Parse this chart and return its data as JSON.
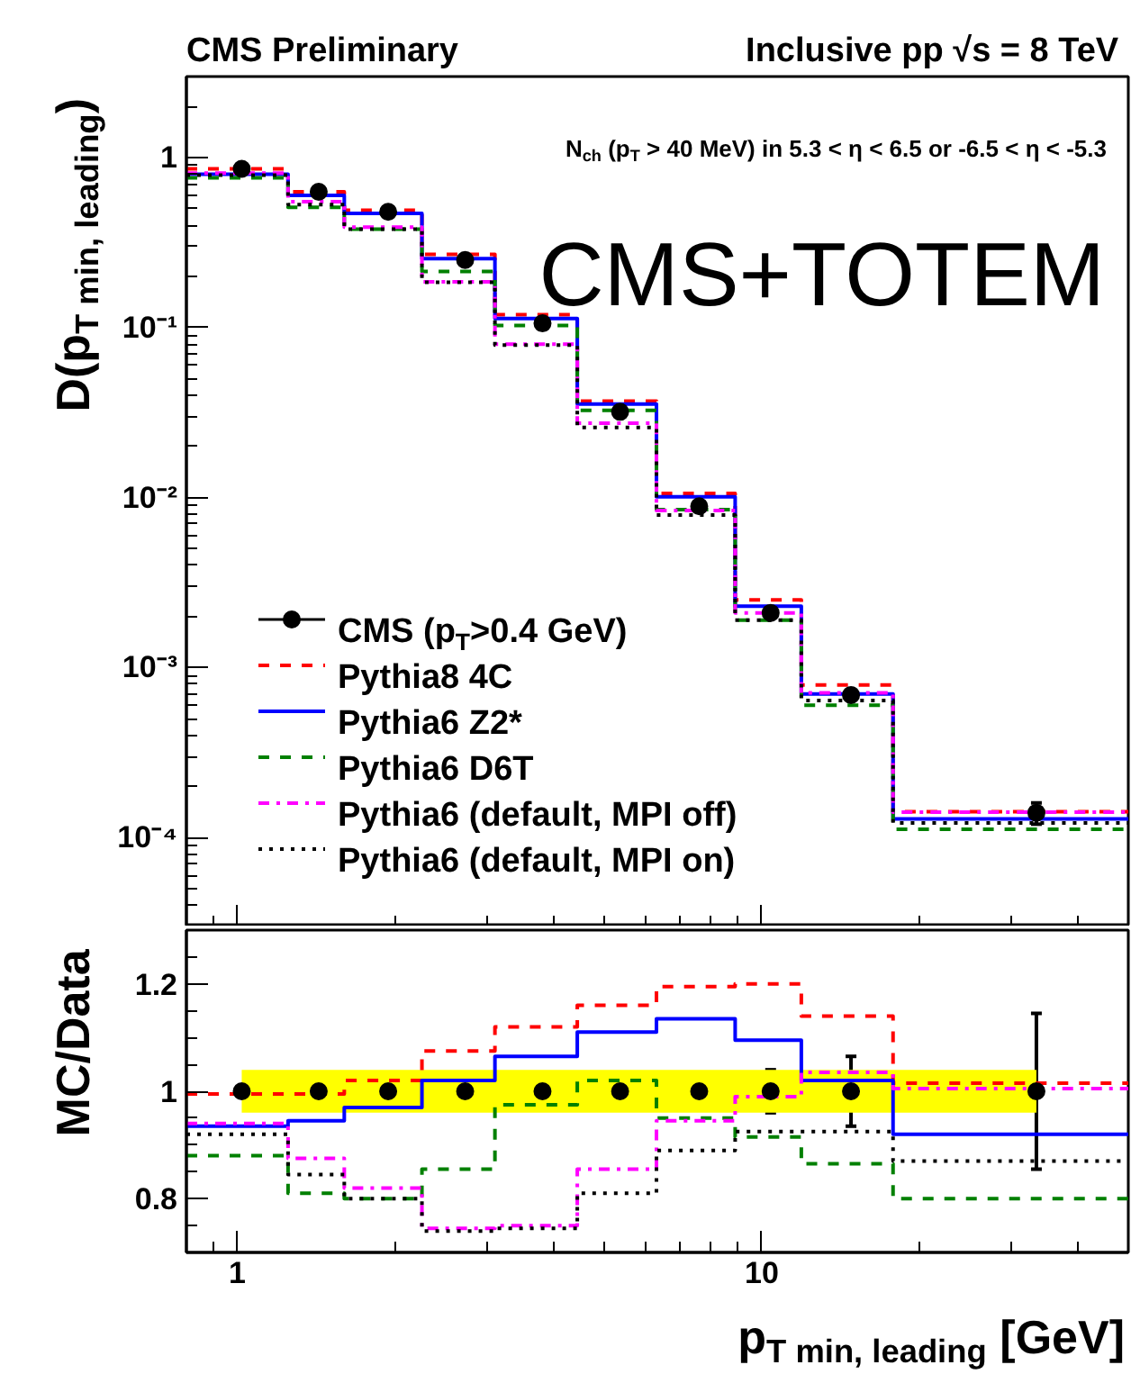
{
  "chart_data": [
    {
      "type": "histogram",
      "title": "CMS Preliminary",
      "subtitle": "Inclusive pp √s = 8 TeV",
      "ylabel": "D(p$_{T min, leading}$)",
      "annotations": [
        "N$_{ch}$ (p$_{T}$ > 40 MeV) in 5.3 < η < 6.5 or -6.5 < η < -5.3",
        "CMS+TOTEM"
      ],
      "bins": [
        0.8,
        1.25,
        1.6,
        2.25,
        3.1,
        4.45,
        6.3,
        8.9,
        11.9,
        17.8,
        50
      ],
      "series": [
        {
          "name": "CMS (p$_{T}$>0.4 GeV)",
          "type": "scatter",
          "color": "#000000",
          "x": [
            1.02,
            1.43,
            1.94,
            2.72,
            3.82,
            5.37,
            7.6,
            10.4,
            14.8,
            33.4
          ],
          "values": [
            0.86,
            0.63,
            0.48,
            0.25,
            0.106,
            0.032,
            0.0089,
            0.0021,
            0.00069,
            0.00014
          ],
          "errors": [
            null,
            null,
            null,
            null,
            null,
            null,
            null,
            null,
            null,
            2e-05
          ]
        },
        {
          "name": "Pythia8 4C",
          "color": "#ff0000",
          "line_style": "dashed",
          "values": [
            0.86,
            0.63,
            0.49,
            0.27,
            0.119,
            0.037,
            0.0106,
            0.0025,
            0.00079,
            0.000142
          ]
        },
        {
          "name": "Pythia6 Z2*",
          "color": "#0000ff",
          "line_style": "solid",
          "values": [
            0.8,
            0.6,
            0.47,
            0.255,
            0.113,
            0.0355,
            0.0101,
            0.0023,
            0.0007,
            0.000129
          ]
        },
        {
          "name": "Pythia6 D6T",
          "color": "#008000",
          "line_style": "dashed",
          "values": [
            0.76,
            0.51,
            0.38,
            0.214,
            0.103,
            0.0326,
            0.0085,
            0.0019,
            0.0006,
            0.000112
          ]
        },
        {
          "name": "Pythia6 (default, MPI off)",
          "color": "#ff00ff",
          "line_style": "dashdot",
          "values": [
            0.81,
            0.55,
            0.39,
            0.186,
            0.08,
            0.0274,
            0.0084,
            0.0021,
            0.00071,
            0.000141
          ]
        },
        {
          "name": "Pythia6 (default, MPI on)",
          "color": "#000000",
          "line_style": "dotted",
          "values": [
            0.79,
            0.53,
            0.38,
            0.185,
            0.079,
            0.0259,
            0.0079,
            0.0019,
            0.00064,
            0.000122
          ]
        }
      ],
      "log": "xy",
      "xlim": [
        0.8,
        50
      ],
      "xticks": [
        1,
        10
      ],
      "ylim": [
        3e-05,
        3
      ],
      "yticks": [
        {
          "value": 1,
          "label": "1"
        },
        {
          "value": 0.1,
          "label": "10⁻¹"
        },
        {
          "value": 0.01,
          "label": "10⁻²"
        },
        {
          "value": 0.001,
          "label": "10⁻³"
        },
        {
          "value": 0.0001,
          "label": "10⁻⁴"
        }
      ],
      "tick_labels": "y",
      "legend": "bottom left",
      "grid": false
    },
    {
      "type": "histogram",
      "xlabel": "p$_{T min, leading}$ [GeV]",
      "ylabel": "MC/Data",
      "bins": [
        0.8,
        1.25,
        1.6,
        2.25,
        3.1,
        4.45,
        6.3,
        8.9,
        11.9,
        17.8,
        50
      ],
      "series": [
        {
          "type": "scatter",
          "color": "#000000",
          "x": [
            1.02,
            1.43,
            1.94,
            2.72,
            3.82,
            5.37,
            7.6,
            10.4,
            14.8,
            33.4
          ],
          "values": [
            1,
            1,
            1,
            1,
            1,
            1,
            1,
            1,
            1,
            1
          ],
          "errors": [
            null,
            null,
            null,
            null,
            null,
            null,
            0.02,
            0.04,
            0.065,
            0.145
          ],
          "lower": [
            0.96,
            0.96,
            0.96,
            0.96,
            0.96,
            0.96,
            0.96,
            0.96,
            0.96,
            0.96
          ],
          "upper": [
            1.04,
            1.04,
            1.04,
            1.04,
            1.04,
            1.04,
            1.04,
            1.04,
            1.04,
            1.04
          ]
        },
        {
          "color": "#ff0000",
          "line_style": "dashed",
          "values": [
            0.995,
            0.995,
            1.02,
            1.075,
            1.12,
            1.16,
            1.195,
            1.2,
            1.14,
            1.015
          ]
        },
        {
          "color": "#0000ff",
          "line_style": "solid",
          "values": [
            0.935,
            0.945,
            0.97,
            1.02,
            1.065,
            1.11,
            1.135,
            1.095,
            1.02,
            0.92
          ]
        },
        {
          "color": "#008000",
          "line_style": "dashed",
          "values": [
            0.88,
            0.81,
            0.8,
            0.855,
            0.975,
            1.02,
            0.95,
            0.915,
            0.865,
            0.8
          ]
        },
        {
          "color": "#ff00ff",
          "line_style": "dashdot",
          "values": [
            0.94,
            0.875,
            0.82,
            0.745,
            0.75,
            0.855,
            0.945,
            0.99,
            1.035,
            1.005
          ]
        },
        {
          "color": "#000000",
          "line_style": "dotted",
          "values": [
            0.92,
            0.845,
            0.8,
            0.74,
            0.745,
            0.81,
            0.89,
            0.925,
            0.925,
            0.87
          ]
        }
      ],
      "log": "x",
      "xlim": [
        0.8,
        50
      ],
      "xticks": [
        1,
        10
      ],
      "ylim": [
        0.7,
        1.3
      ],
      "yticks": [
        0.8,
        1,
        1.2
      ],
      "grid": false
    }
  ]
}
